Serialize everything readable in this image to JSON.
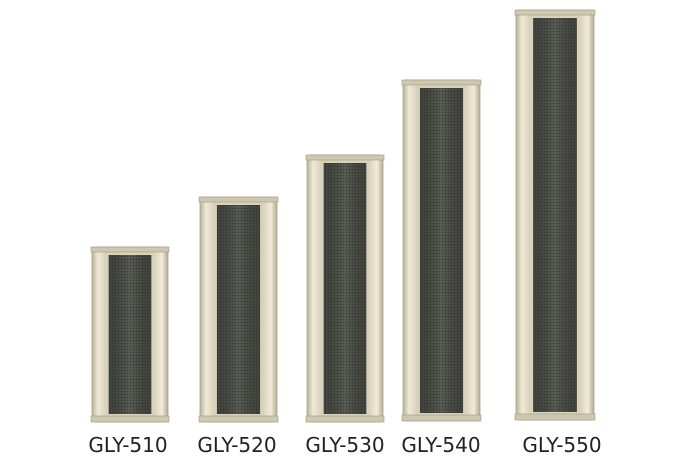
{
  "products": [
    {
      "label": "GLY-510"
    },
    {
      "label": "GLY-520"
    },
    {
      "label": "GLY-530"
    },
    {
      "label": "GLY-540"
    },
    {
      "label": "GLY-550"
    }
  ]
}
